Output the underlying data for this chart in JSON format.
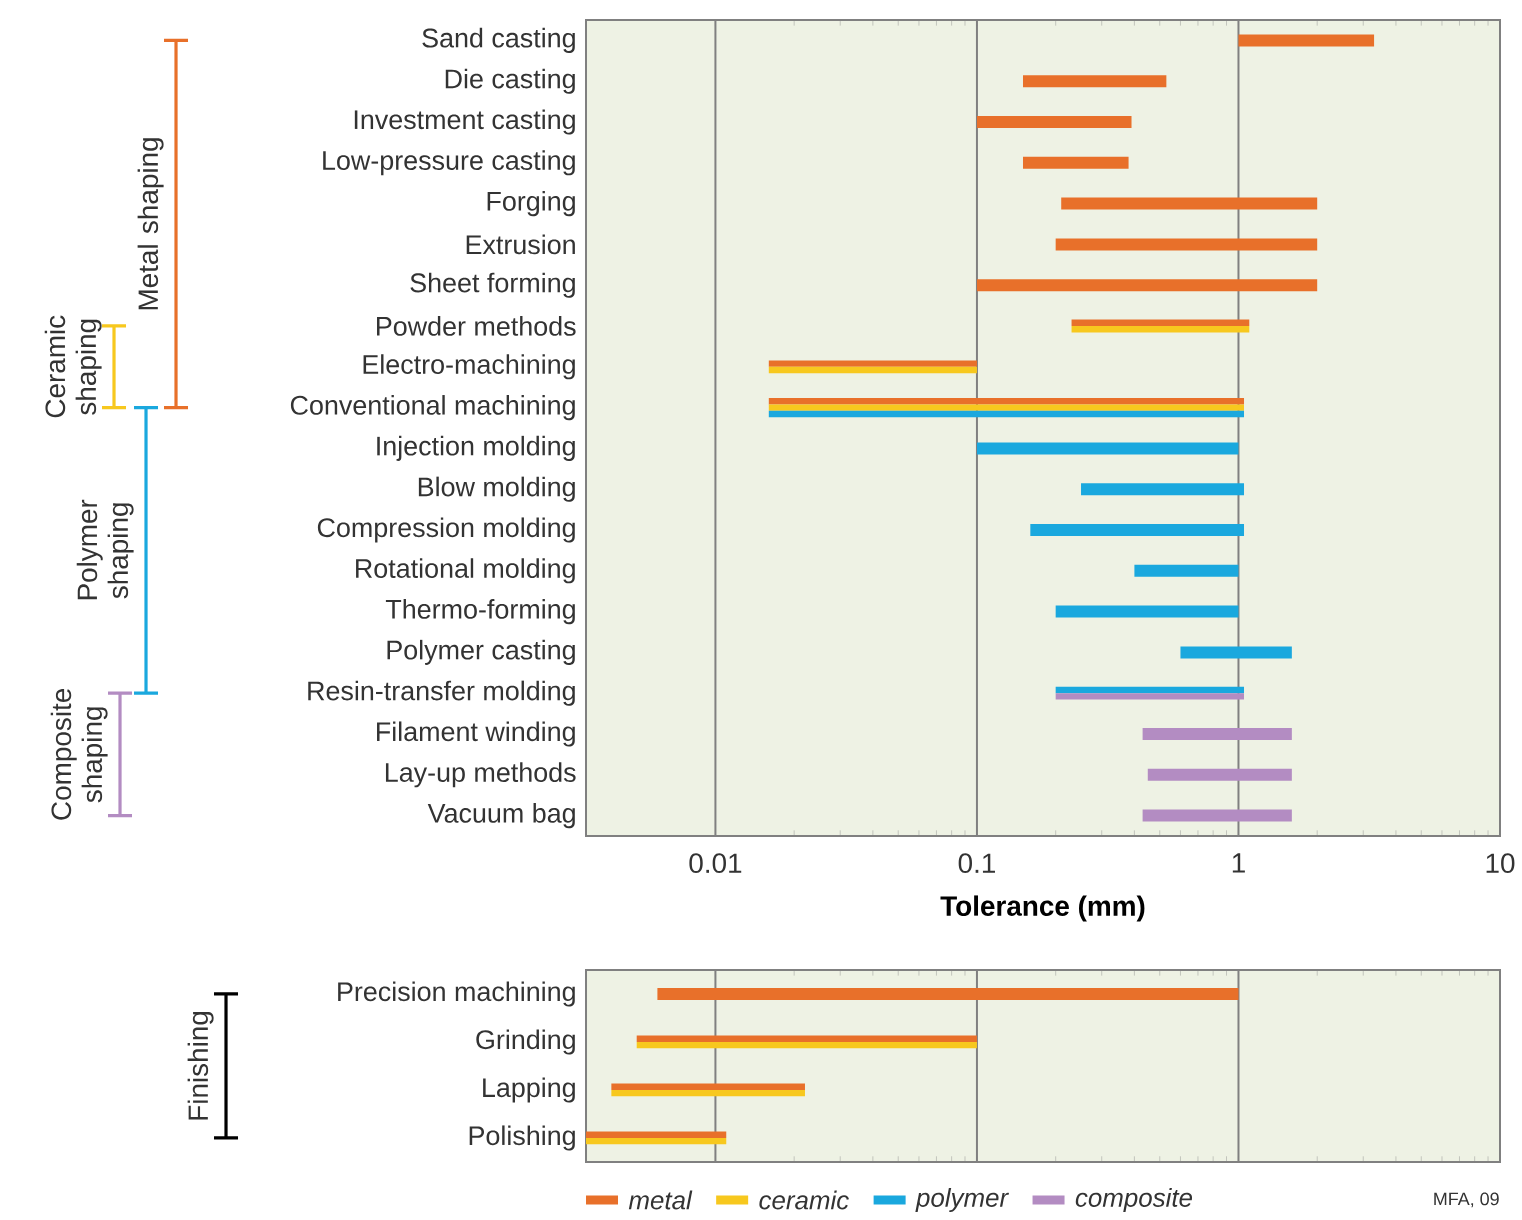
{
  "chart_data": [
    {
      "type": "bar",
      "orientation": "horizontal",
      "log": "x",
      "grid": "x",
      "xlabel": "Tolerance (mm)",
      "categories": [
        "Sand casting",
        "Die casting",
        "Investment casting",
        "Low-pressure casting",
        "Forging",
        "Extrusion",
        "Sheet forming",
        "Powder methods",
        "Electro-machining",
        "Conventional machining",
        "Injection molding",
        "Blow molding",
        "Compression molding",
        "Rotational molding",
        "Thermo-forming",
        "Polymer casting",
        "Resin-transfer molding",
        "Filament winding",
        "Lay-up methods",
        "Vacuum bag"
      ],
      "xlim": [
        0.0032,
        10
      ],
      "xticks": [
        0.01,
        0.1,
        1,
        10
      ],
      "series": [
        {
          "color": "#e8702a",
          "base": [
            1,
            0.15,
            0.1,
            0.15,
            0.21,
            0.2,
            0.1,
            0.23,
            0.016,
            0.016,
            null,
            null,
            null,
            null,
            null,
            null,
            null,
            null,
            null,
            null
          ],
          "values": [
            2.3,
            0.38,
            0.29,
            0.23,
            1.79,
            1.8,
            1.9,
            0.87,
            0.084,
            1.034,
            null,
            null,
            null,
            null,
            null,
            null,
            null,
            null,
            null,
            null
          ]
        },
        {
          "color": "#f7c81e",
          "base": [
            null,
            null,
            null,
            null,
            null,
            null,
            null,
            0.23,
            0.016,
            0.016,
            null,
            null,
            null,
            null,
            null,
            null,
            null,
            null,
            null,
            null
          ],
          "values": [
            null,
            null,
            null,
            null,
            null,
            null,
            null,
            0.87,
            0.084,
            1.034,
            null,
            null,
            null,
            null,
            null,
            null,
            null,
            null,
            null,
            null
          ]
        },
        {
          "color": "#1aa8de",
          "base": [
            null,
            null,
            null,
            null,
            null,
            null,
            null,
            null,
            null,
            0.016,
            0.1,
            0.25,
            0.16,
            0.4,
            0.2,
            0.6,
            0.2,
            null,
            null,
            null
          ],
          "values": [
            null,
            null,
            null,
            null,
            null,
            null,
            null,
            null,
            null,
            1.034,
            0.9,
            0.8,
            0.89,
            0.6,
            0.8,
            1.0,
            0.85,
            null,
            null,
            null
          ]
        },
        {
          "color": "#b38cc2",
          "base": [
            null,
            null,
            null,
            null,
            null,
            null,
            null,
            null,
            null,
            null,
            null,
            null,
            null,
            null,
            null,
            null,
            0.2,
            0.43,
            0.45,
            0.43
          ],
          "values": [
            null,
            null,
            null,
            null,
            null,
            null,
            null,
            null,
            null,
            null,
            null,
            null,
            null,
            null,
            null,
            null,
            0.85,
            1.17,
            1.15,
            1.17
          ]
        }
      ],
      "annotations": [
        "Metal shaping",
        "Ceramic shaping",
        "Polymer shaping",
        "Composite shaping"
      ]
    },
    {
      "type": "bar",
      "orientation": "horizontal",
      "log": "x",
      "grid": "x",
      "tick_labels": "y",
      "legend": "bottom",
      "categories": [
        "Precision machining",
        "Grinding",
        "Lapping",
        "Polishing"
      ],
      "xlim": [
        0.0032,
        10
      ],
      "xticks": [
        {
          "value": 0.01,
          "label": null
        },
        {
          "value": 0.1,
          "label": null
        },
        {
          "value": 1,
          "label": null
        },
        {
          "value": 10,
          "label": null
        }
      ],
      "series": [
        {
          "name": "metal",
          "color": "#e8702a",
          "base": [
            0.006,
            0.005,
            0.004,
            0.0032
          ],
          "values": [
            0.994,
            0.095,
            0.018,
            0.0078
          ]
        },
        {
          "name": "ceramic",
          "color": "#f7c81e",
          "base": [
            null,
            0.005,
            0.004,
            0.0032
          ],
          "values": [
            null,
            0.095,
            0.018,
            0.0078
          ]
        },
        {
          "name": "polymer",
          "color": "#1aa8de",
          "base": [
            null,
            null,
            null,
            null
          ],
          "values": [
            null,
            null,
            null,
            null
          ]
        },
        {
          "name": "composite",
          "color": "#b38cc2",
          "base": [
            null,
            null,
            null,
            null
          ],
          "values": [
            null,
            null,
            null,
            null
          ]
        }
      ],
      "annotations": [
        "Finishing",
        "MFA, 09"
      ]
    }
  ]
}
